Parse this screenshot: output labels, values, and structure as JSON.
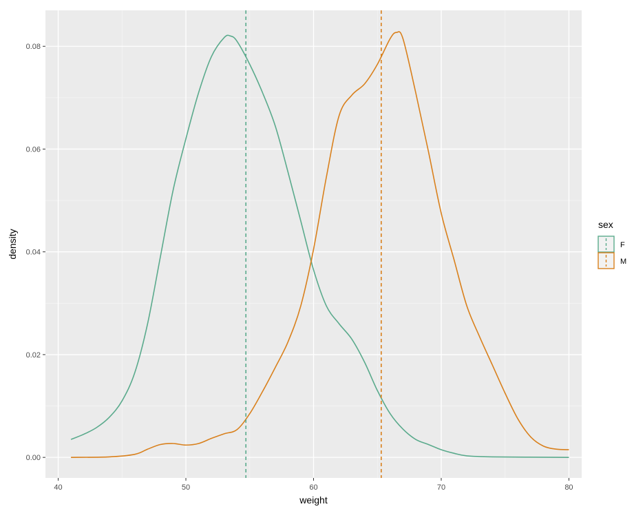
{
  "chart_data": {
    "type": "line",
    "title": "",
    "xlabel": "weight",
    "ylabel": "density",
    "xlim": [
      39,
      81
    ],
    "ylim": [
      -0.004,
      0.087
    ],
    "x_ticks": [
      40,
      50,
      60,
      70,
      80
    ],
    "y_ticks": [
      0.0,
      0.02,
      0.04,
      0.06,
      0.08
    ],
    "y_tick_labels": [
      "0.00",
      "0.02",
      "0.04",
      "0.06",
      "0.08"
    ],
    "grid": true,
    "legend": {
      "title": "sex",
      "position": "right",
      "entries": [
        "F",
        "M"
      ]
    },
    "series": [
      {
        "name": "F",
        "color": "#5aaa8c",
        "mean": 54.7,
        "points": [
          [
            41,
            0.0035
          ],
          [
            42,
            0.0045
          ],
          [
            43,
            0.0058
          ],
          [
            44,
            0.0078
          ],
          [
            45,
            0.011
          ],
          [
            46,
            0.0165
          ],
          [
            47,
            0.026
          ],
          [
            48,
            0.039
          ],
          [
            49,
            0.052
          ],
          [
            50,
            0.062
          ],
          [
            51,
            0.071
          ],
          [
            52,
            0.078
          ],
          [
            53,
            0.0817
          ],
          [
            53.5,
            0.082
          ],
          [
            54,
            0.081
          ],
          [
            55,
            0.0765
          ],
          [
            56,
            0.071
          ],
          [
            57,
            0.0645
          ],
          [
            58,
            0.0555
          ],
          [
            59,
            0.046
          ],
          [
            60,
            0.0365
          ],
          [
            61,
            0.0295
          ],
          [
            62,
            0.026
          ],
          [
            63,
            0.023
          ],
          [
            64,
            0.0185
          ],
          [
            65,
            0.013
          ],
          [
            66,
            0.0085
          ],
          [
            67,
            0.0055
          ],
          [
            68,
            0.0035
          ],
          [
            69,
            0.0025
          ],
          [
            70,
            0.0015
          ],
          [
            71,
            0.0008
          ],
          [
            72,
            0.0003
          ],
          [
            74,
            0.0001
          ],
          [
            80,
            0.0
          ]
        ]
      },
      {
        "name": "M",
        "color": "#d9801c",
        "mean": 65.3,
        "points": [
          [
            41,
            0.0
          ],
          [
            44,
            0.0001
          ],
          [
            46,
            0.0006
          ],
          [
            47,
            0.0016
          ],
          [
            48,
            0.0025
          ],
          [
            49,
            0.0027
          ],
          [
            50,
            0.0024
          ],
          [
            51,
            0.0027
          ],
          [
            52,
            0.0037
          ],
          [
            53,
            0.0046
          ],
          [
            54,
            0.0054
          ],
          [
            55,
            0.0085
          ],
          [
            56,
            0.0128
          ],
          [
            57,
            0.0175
          ],
          [
            58,
            0.0225
          ],
          [
            59,
            0.0295
          ],
          [
            60,
            0.0405
          ],
          [
            61,
            0.0545
          ],
          [
            62,
            0.0665
          ],
          [
            63,
            0.0705
          ],
          [
            64,
            0.0727
          ],
          [
            65,
            0.0765
          ],
          [
            66,
            0.0815
          ],
          [
            66.5,
            0.0827
          ],
          [
            67,
            0.0815
          ],
          [
            68,
            0.071
          ],
          [
            69,
            0.0595
          ],
          [
            70,
            0.0475
          ],
          [
            71,
            0.0385
          ],
          [
            72,
            0.0295
          ],
          [
            73,
            0.0235
          ],
          [
            74,
            0.018
          ],
          [
            75,
            0.0125
          ],
          [
            76,
            0.0075
          ],
          [
            77,
            0.004
          ],
          [
            78,
            0.0022
          ],
          [
            79,
            0.0016
          ],
          [
            80,
            0.0015
          ]
        ]
      }
    ]
  }
}
